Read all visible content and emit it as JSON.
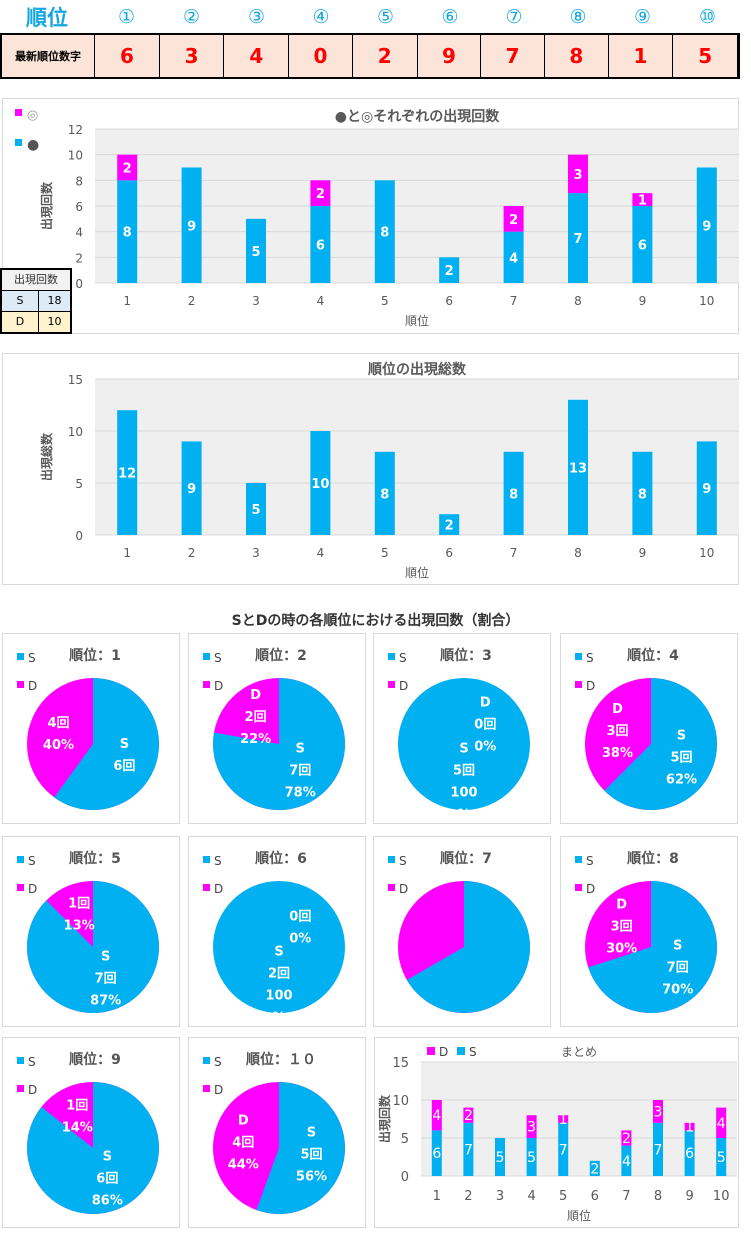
{
  "header": {
    "label": "順位",
    "positions": [
      "①",
      "②",
      "③",
      "④",
      "⑤",
      "⑥",
      "⑦",
      "⑧",
      "⑨",
      "⑩"
    ]
  },
  "latest": {
    "label": "最新順位数字",
    "digits": [
      "6",
      "3",
      "4",
      "0",
      "2",
      "9",
      "7",
      "8",
      "1",
      "5"
    ]
  },
  "colors": {
    "S": "#00b0f0",
    "D": "#ff00ff",
    "accent": "#16a7e0"
  },
  "legend_top": {
    "d_symbol": "◎",
    "s_symbol": "●"
  },
  "count_table": {
    "title": "出現回数",
    "rows": [
      {
        "k": "S",
        "v": "18"
      },
      {
        "k": "D",
        "v": "10"
      }
    ]
  },
  "section_title": "SとDの時の各順位における出現回数（割合）",
  "chart_data": [
    {
      "type": "bar",
      "stacked": true,
      "title": "●と◎それぞれの出現回数",
      "xlabel": "順位",
      "ylabel": "出現回数",
      "ylim": [
        0,
        12
      ],
      "yticks": [
        0,
        2,
        4,
        6,
        8,
        10,
        12
      ],
      "categories": [
        "1",
        "2",
        "3",
        "4",
        "5",
        "6",
        "7",
        "8",
        "9",
        "10"
      ],
      "series": [
        {
          "name": "●",
          "values": [
            8,
            9,
            5,
            6,
            8,
            2,
            4,
            7,
            6,
            9
          ]
        },
        {
          "name": "◎",
          "values": [
            2,
            0,
            0,
            2,
            0,
            0,
            2,
            3,
            1,
            0
          ]
        }
      ]
    },
    {
      "type": "bar",
      "title": "順位の出現総数",
      "xlabel": "順位",
      "ylabel": "出現総数",
      "ylim": [
        0,
        15
      ],
      "yticks": [
        0,
        5,
        10,
        15
      ],
      "categories": [
        "1",
        "2",
        "3",
        "4",
        "5",
        "6",
        "7",
        "8",
        "9",
        "10"
      ],
      "series": [
        {
          "name": "出現総数",
          "values": [
            12,
            9,
            5,
            10,
            8,
            2,
            8,
            13,
            8,
            9
          ]
        }
      ]
    },
    {
      "type": "pie",
      "pies": [
        {
          "title": "順位：1",
          "S": 6,
          "D": 4,
          "s_label": [
            "S",
            "6回"
          ],
          "d_label": [
            "4回",
            "40%"
          ]
        },
        {
          "title": "順位：2",
          "S": 7,
          "D": 2,
          "s_label": [
            "S",
            "7回",
            "78%"
          ],
          "d_label": [
            "D",
            "2回",
            "22%"
          ]
        },
        {
          "title": "順位：3",
          "S": 5,
          "D": 0,
          "s_label": [
            "S",
            "5回",
            "100",
            "%"
          ],
          "d_label": [
            "D",
            "0回",
            "0%"
          ]
        },
        {
          "title": "順位：4",
          "S": 5,
          "D": 3,
          "s_label": [
            "S",
            "5回",
            "62%"
          ],
          "d_label": [
            "D",
            "3回",
            "38%"
          ]
        },
        {
          "title": "順位：5",
          "S": 7,
          "D": 1,
          "s_label": [
            "S",
            "7回",
            "87%"
          ],
          "d_label": [
            "1回",
            "13%"
          ]
        },
        {
          "title": "順位：6",
          "S": 2,
          "D": 0,
          "s_label": [
            "S",
            "2回",
            "100",
            "%"
          ],
          "d_label": [
            "0回",
            "0%"
          ]
        },
        {
          "title": "順位：7",
          "S": 4,
          "D": 2,
          "s_label": [],
          "d_label": []
        },
        {
          "title": "順位：8",
          "S": 7,
          "D": 3,
          "s_label": [
            "S",
            "7回",
            "70%"
          ],
          "d_label": [
            "D",
            "3回",
            "30%"
          ]
        },
        {
          "title": "順位：9",
          "S": 6,
          "D": 1,
          "s_label": [
            "S",
            "6回",
            "86%"
          ],
          "d_label": [
            "1回",
            "14%"
          ]
        },
        {
          "title": "順位：１０",
          "S": 5,
          "D": 4,
          "s_label": [
            "S",
            "5回",
            "56%"
          ],
          "d_label": [
            "D",
            "4回",
            "44%"
          ]
        }
      ],
      "legend": [
        "S",
        "D"
      ]
    },
    {
      "type": "bar",
      "stacked": true,
      "title": "まとめ",
      "xlabel": "順位",
      "ylabel": "出現回数",
      "ylim": [
        0,
        15
      ],
      "yticks": [
        0,
        5,
        10,
        15
      ],
      "categories": [
        "1",
        "2",
        "3",
        "4",
        "5",
        "6",
        "7",
        "8",
        "9",
        "10"
      ],
      "legend": [
        "D",
        "S"
      ],
      "series": [
        {
          "name": "S",
          "values": [
            6,
            7,
            5,
            5,
            7,
            2,
            4,
            7,
            6,
            5
          ]
        },
        {
          "name": "D",
          "values": [
            4,
            2,
            0,
            3,
            1,
            0,
            2,
            3,
            1,
            4
          ]
        }
      ]
    }
  ]
}
